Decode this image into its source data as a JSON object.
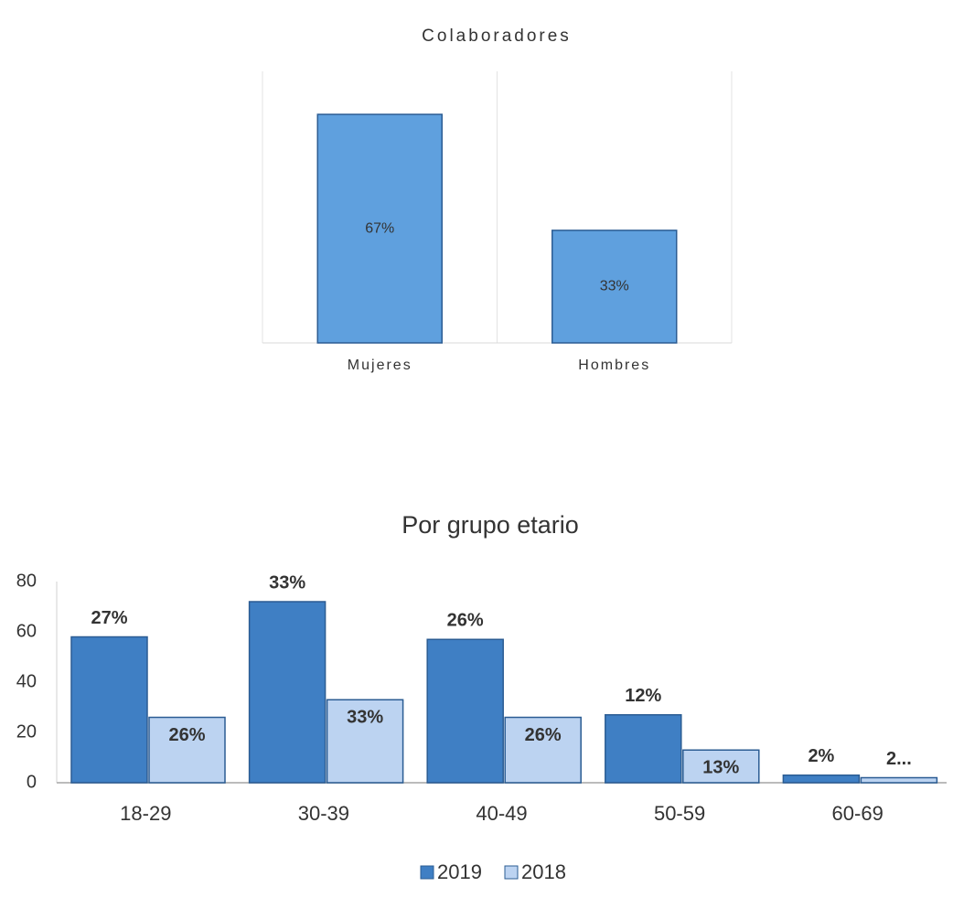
{
  "chart_data": [
    {
      "type": "bar",
      "title": "Colaboradores",
      "categories": [
        "Mujeres",
        "Hombres"
      ],
      "values": [
        67,
        33
      ],
      "value_labels": [
        "67%",
        "33%"
      ],
      "color": "#5fa0de"
    },
    {
      "type": "bar",
      "title": "Por grupo etario",
      "categories": [
        "18-29",
        "30-39",
        "40-49",
        "50-59",
        "60-69"
      ],
      "series": [
        {
          "name": "2019",
          "color": "#3f7fc4",
          "values": [
            58,
            72,
            57,
            27,
            3
          ],
          "value_labels": [
            "27%",
            "33%",
            "26%",
            "12%",
            "2%"
          ]
        },
        {
          "name": "2018",
          "color": "#bcd3f1",
          "values": [
            26,
            33,
            26,
            13,
            2
          ],
          "value_labels": [
            "26%",
            "33%",
            "26%",
            "13%",
            "2..."
          ]
        }
      ],
      "ylim": [
        0,
        80
      ],
      "yticks": [
        0,
        20,
        40,
        60,
        80
      ],
      "legend": "bottom"
    }
  ]
}
